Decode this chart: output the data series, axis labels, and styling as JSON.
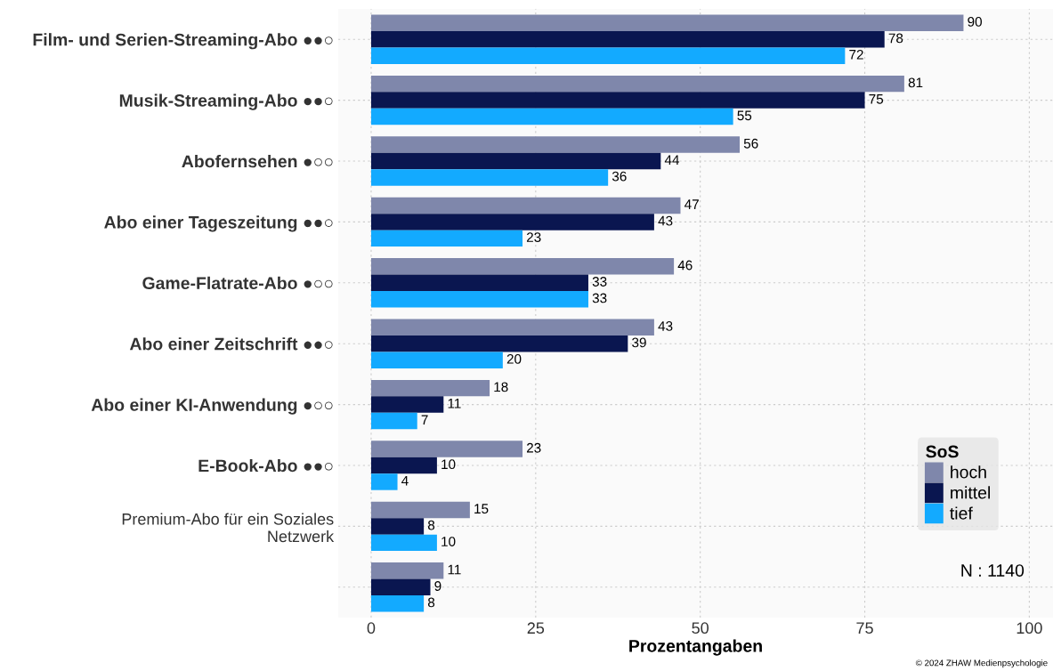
{
  "chart_data": {
    "type": "bar",
    "orientation": "horizontal",
    "xlabel": "Prozentangaben",
    "legend_title": "SoS",
    "legend": "bottom right",
    "grid": true,
    "data_labels": true,
    "categories": [
      "Film- und Serien-Streaming-Abo ●●○",
      "Musik-Streaming-Abo ●●○",
      "Abofernsehen ●○○",
      "Abo einer Tageszeitung ●●○",
      "Game-Flatrate-Abo ●○○",
      "Abo einer Zeitschrift ●●○",
      "Abo einer KI-Anwendung ●○○",
      "E-Book-Abo ●●○",
      "Premium-Abo für ein Soziales Netzwerk",
      null
    ],
    "series": [
      {
        "name": "hoch",
        "color": "#7f87ab",
        "values": [
          90,
          81,
          56,
          47,
          46,
          43,
          18,
          23,
          15,
          11
        ]
      },
      {
        "name": "mittel",
        "color": "#0a1650",
        "values": [
          78,
          75,
          44,
          43,
          33,
          39,
          11,
          10,
          8,
          9
        ]
      },
      {
        "name": "tief",
        "color": "#13aaff",
        "values": [
          72,
          55,
          36,
          23,
          33,
          20,
          7,
          4,
          10,
          8
        ]
      }
    ],
    "xlim": [
      -5,
      103.6
    ],
    "xticks": [
      0,
      25,
      50,
      75,
      100
    ],
    "annotations": [
      "N : 1140",
      "© 2024 ZHAW Medienpsychologie"
    ]
  }
}
